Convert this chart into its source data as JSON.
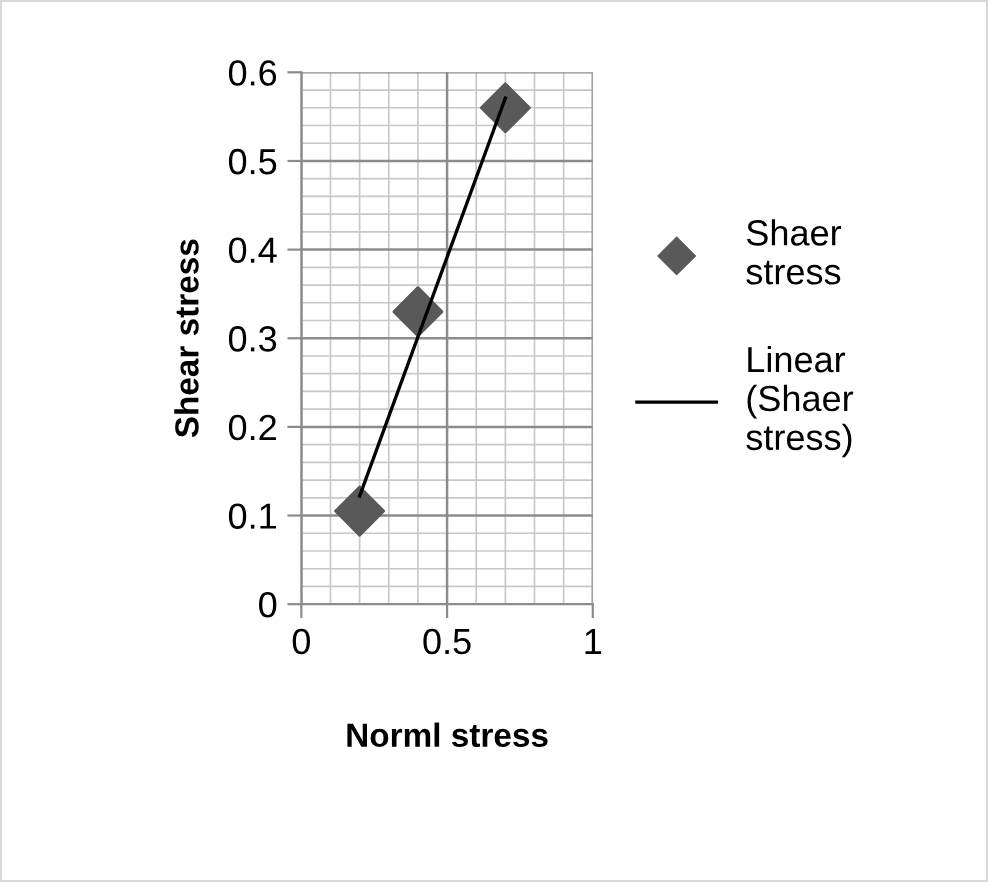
{
  "chart_data": {
    "type": "scatter",
    "xlabel": "Norml stress",
    "ylabel": "Shear stress",
    "xlim": [
      0,
      1
    ],
    "ylim": [
      0,
      0.6
    ],
    "xticks": [
      0,
      0.5,
      1
    ],
    "yticks": [
      0,
      0.1,
      0.2,
      0.3,
      0.4,
      0.5,
      0.6
    ],
    "grid": true,
    "legend": "right",
    "series": [
      {
        "name": "Shaer stress",
        "marker": "diamond",
        "color": "#595959",
        "x": [
          0.2,
          0.4,
          0.7
        ],
        "values": [
          0.105,
          0.33,
          0.56
        ]
      },
      {
        "name": "Linear (Shaer stress)",
        "type": "line",
        "marker": "none",
        "line_style": "solid",
        "color": "#000000",
        "x": [
          0.2,
          0.7
        ],
        "values": [
          0.122,
          0.571
        ]
      }
    ]
  }
}
